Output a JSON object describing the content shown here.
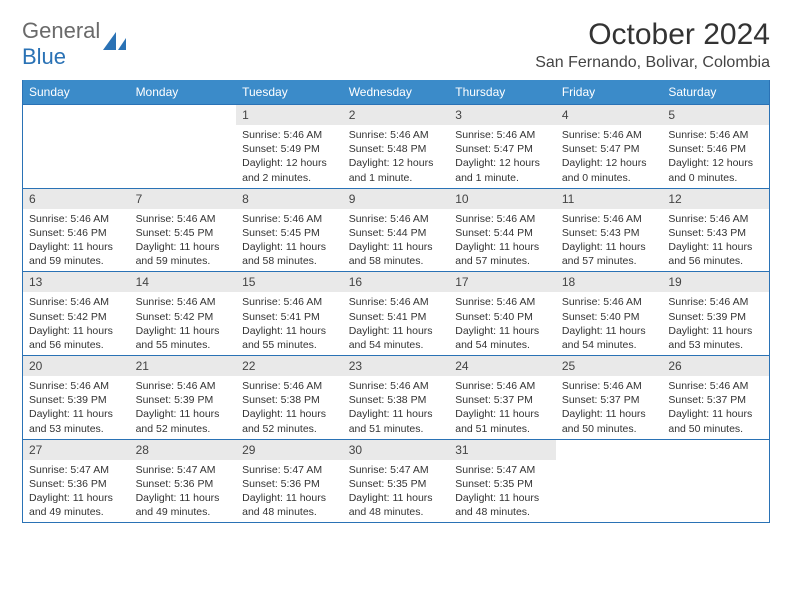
{
  "brand": {
    "part1": "General",
    "part2": "Blue"
  },
  "title": "October 2024",
  "location": "San Fernando, Bolivar, Colombia",
  "colors": {
    "header_bg": "#3b8bc9",
    "border": "#2a72b5",
    "daynum_bg": "#e9e9e9",
    "text": "#333333",
    "brand_gray": "#6a6a6a",
    "brand_blue": "#2a72b5"
  },
  "day_headers": [
    "Sunday",
    "Monday",
    "Tuesday",
    "Wednesday",
    "Thursday",
    "Friday",
    "Saturday"
  ],
  "weeks": [
    [
      {
        "empty": true
      },
      {
        "empty": true
      },
      {
        "n": "1",
        "sunrise": "5:46 AM",
        "sunset": "5:49 PM",
        "daylight": "12 hours and 2 minutes."
      },
      {
        "n": "2",
        "sunrise": "5:46 AM",
        "sunset": "5:48 PM",
        "daylight": "12 hours and 1 minute."
      },
      {
        "n": "3",
        "sunrise": "5:46 AM",
        "sunset": "5:47 PM",
        "daylight": "12 hours and 1 minute."
      },
      {
        "n": "4",
        "sunrise": "5:46 AM",
        "sunset": "5:47 PM",
        "daylight": "12 hours and 0 minutes."
      },
      {
        "n": "5",
        "sunrise": "5:46 AM",
        "sunset": "5:46 PM",
        "daylight": "12 hours and 0 minutes."
      }
    ],
    [
      {
        "n": "6",
        "sunrise": "5:46 AM",
        "sunset": "5:46 PM",
        "daylight": "11 hours and 59 minutes."
      },
      {
        "n": "7",
        "sunrise": "5:46 AM",
        "sunset": "5:45 PM",
        "daylight": "11 hours and 59 minutes."
      },
      {
        "n": "8",
        "sunrise": "5:46 AM",
        "sunset": "5:45 PM",
        "daylight": "11 hours and 58 minutes."
      },
      {
        "n": "9",
        "sunrise": "5:46 AM",
        "sunset": "5:44 PM",
        "daylight": "11 hours and 58 minutes."
      },
      {
        "n": "10",
        "sunrise": "5:46 AM",
        "sunset": "5:44 PM",
        "daylight": "11 hours and 57 minutes."
      },
      {
        "n": "11",
        "sunrise": "5:46 AM",
        "sunset": "5:43 PM",
        "daylight": "11 hours and 57 minutes."
      },
      {
        "n": "12",
        "sunrise": "5:46 AM",
        "sunset": "5:43 PM",
        "daylight": "11 hours and 56 minutes."
      }
    ],
    [
      {
        "n": "13",
        "sunrise": "5:46 AM",
        "sunset": "5:42 PM",
        "daylight": "11 hours and 56 minutes."
      },
      {
        "n": "14",
        "sunrise": "5:46 AM",
        "sunset": "5:42 PM",
        "daylight": "11 hours and 55 minutes."
      },
      {
        "n": "15",
        "sunrise": "5:46 AM",
        "sunset": "5:41 PM",
        "daylight": "11 hours and 55 minutes."
      },
      {
        "n": "16",
        "sunrise": "5:46 AM",
        "sunset": "5:41 PM",
        "daylight": "11 hours and 54 minutes."
      },
      {
        "n": "17",
        "sunrise": "5:46 AM",
        "sunset": "5:40 PM",
        "daylight": "11 hours and 54 minutes."
      },
      {
        "n": "18",
        "sunrise": "5:46 AM",
        "sunset": "5:40 PM",
        "daylight": "11 hours and 54 minutes."
      },
      {
        "n": "19",
        "sunrise": "5:46 AM",
        "sunset": "5:39 PM",
        "daylight": "11 hours and 53 minutes."
      }
    ],
    [
      {
        "n": "20",
        "sunrise": "5:46 AM",
        "sunset": "5:39 PM",
        "daylight": "11 hours and 53 minutes."
      },
      {
        "n": "21",
        "sunrise": "5:46 AM",
        "sunset": "5:39 PM",
        "daylight": "11 hours and 52 minutes."
      },
      {
        "n": "22",
        "sunrise": "5:46 AM",
        "sunset": "5:38 PM",
        "daylight": "11 hours and 52 minutes."
      },
      {
        "n": "23",
        "sunrise": "5:46 AM",
        "sunset": "5:38 PM",
        "daylight": "11 hours and 51 minutes."
      },
      {
        "n": "24",
        "sunrise": "5:46 AM",
        "sunset": "5:37 PM",
        "daylight": "11 hours and 51 minutes."
      },
      {
        "n": "25",
        "sunrise": "5:46 AM",
        "sunset": "5:37 PM",
        "daylight": "11 hours and 50 minutes."
      },
      {
        "n": "26",
        "sunrise": "5:46 AM",
        "sunset": "5:37 PM",
        "daylight": "11 hours and 50 minutes."
      }
    ],
    [
      {
        "n": "27",
        "sunrise": "5:47 AM",
        "sunset": "5:36 PM",
        "daylight": "11 hours and 49 minutes."
      },
      {
        "n": "28",
        "sunrise": "5:47 AM",
        "sunset": "5:36 PM",
        "daylight": "11 hours and 49 minutes."
      },
      {
        "n": "29",
        "sunrise": "5:47 AM",
        "sunset": "5:36 PM",
        "daylight": "11 hours and 48 minutes."
      },
      {
        "n": "30",
        "sunrise": "5:47 AM",
        "sunset": "5:35 PM",
        "daylight": "11 hours and 48 minutes."
      },
      {
        "n": "31",
        "sunrise": "5:47 AM",
        "sunset": "5:35 PM",
        "daylight": "11 hours and 48 minutes."
      },
      {
        "empty": true
      },
      {
        "empty": true
      }
    ]
  ],
  "labels": {
    "sunrise": "Sunrise:",
    "sunset": "Sunset:",
    "daylight": "Daylight:"
  }
}
